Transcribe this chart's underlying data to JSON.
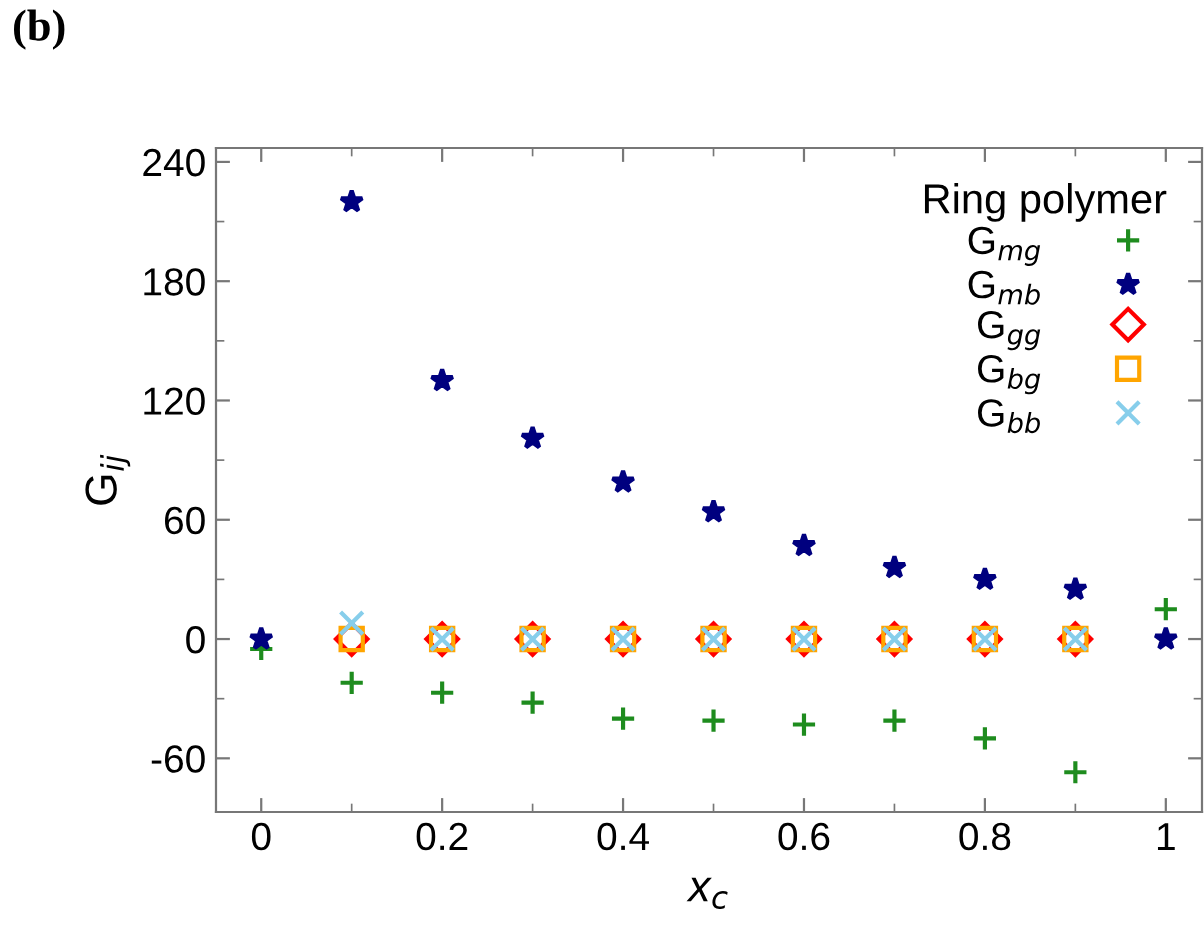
{
  "chart_data": {
    "type": "scatter",
    "xlabel": "x$_{c}$",
    "ylabel": "G$_{ij}$",
    "legend_title": "Ring polymer",
    "legend": "top right",
    "grid": false,
    "annotations": [
      "(b)"
    ],
    "xlim": [
      -0.05,
      1.04
    ],
    "ylim": [
      -87,
      247
    ],
    "xticks": [
      0,
      {
        "value": 0.1,
        "label": null
      },
      0.2,
      {
        "value": 0.3,
        "label": null
      },
      0.4,
      {
        "value": 0.5,
        "label": null
      },
      0.6,
      {
        "value": 0.7,
        "label": null
      },
      0.8,
      {
        "value": 0.9,
        "label": null
      },
      1
    ],
    "yticks": [
      -60,
      {
        "value": -30,
        "label": null
      },
      0,
      {
        "value": 30,
        "label": null
      },
      60,
      {
        "value": 90,
        "label": null
      },
      120,
      {
        "value": 150,
        "label": null
      },
      180,
      {
        "value": 210,
        "label": null
      },
      240
    ],
    "series": [
      {
        "name": "G$_{mg}$",
        "color": "#1e8c1e",
        "marker": "plus",
        "x": [
          0,
          0.1,
          0.2,
          0.3,
          0.4,
          0.5,
          0.6,
          0.7,
          0.8,
          0.9,
          1.0
        ],
        "values": [
          -5,
          -22,
          -27,
          -32,
          -40,
          -41,
          -43,
          -41,
          -50,
          -67,
          15
        ]
      },
      {
        "name": "G$_{mb}$",
        "color": "#00007f",
        "marker": "star",
        "x": [
          0,
          0.1,
          0.2,
          0.3,
          0.4,
          0.5,
          0.6,
          0.7,
          0.8,
          0.9,
          1.0
        ],
        "values": [
          0,
          220,
          130,
          101,
          79,
          64,
          47,
          36,
          30,
          25,
          0
        ]
      },
      {
        "name": "G$_{gg}$",
        "color": "#ff0000",
        "marker": "diamond",
        "x": [
          0.1,
          0.2,
          0.3,
          0.4,
          0.5,
          0.6,
          0.7,
          0.8,
          0.9
        ],
        "values": [
          0,
          0,
          0,
          0,
          0,
          0,
          0,
          0,
          0
        ]
      },
      {
        "name": "G$_{bg}$",
        "color": "#ffa500",
        "marker": "square",
        "x": [
          0.1,
          0.2,
          0.3,
          0.4,
          0.5,
          0.6,
          0.7,
          0.8,
          0.9
        ],
        "values": [
          0,
          0,
          0,
          0,
          0,
          0,
          0,
          0,
          0
        ]
      },
      {
        "name": "G$_{bb}$",
        "color": "#87ceeb",
        "marker": "cross",
        "x": [
          0.1,
          0.2,
          0.3,
          0.4,
          0.5,
          0.6,
          0.7,
          0.8,
          0.9
        ],
        "values": [
          8,
          0,
          0,
          0,
          0,
          0,
          0,
          0,
          0
        ]
      }
    ]
  }
}
